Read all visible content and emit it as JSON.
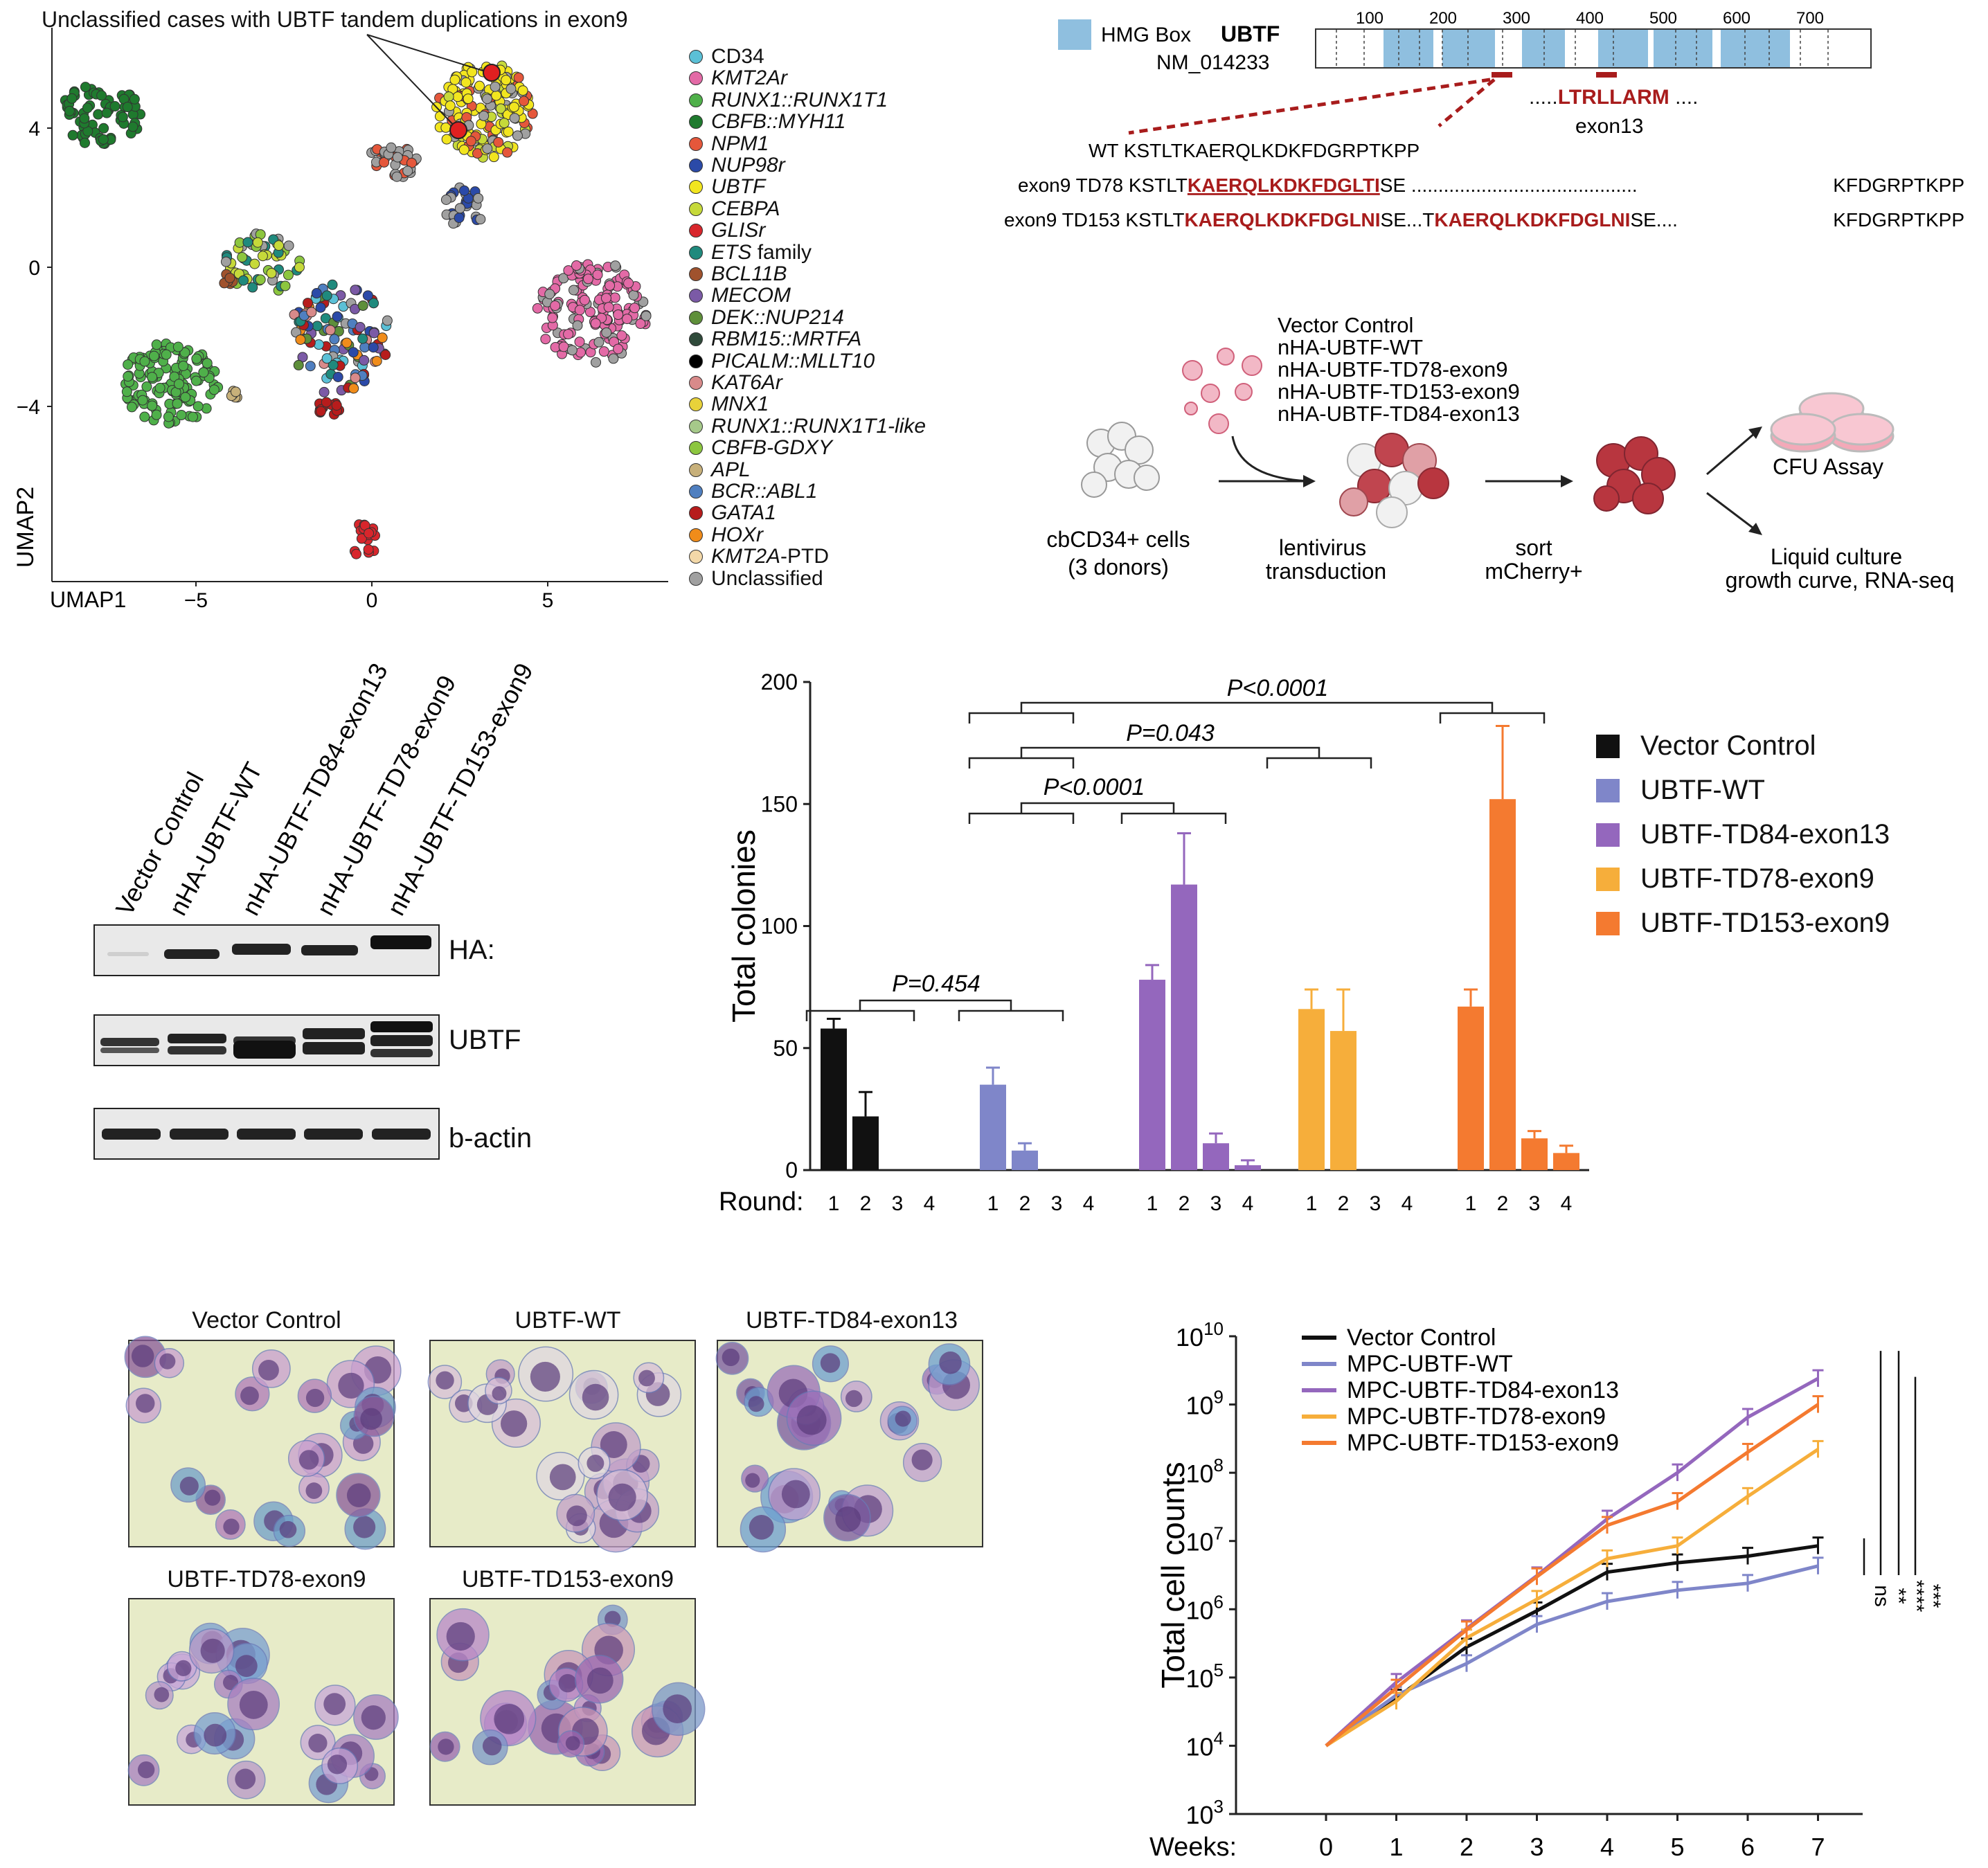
{
  "panelA": {
    "annotation": "Unclassified cases with UBTF tandem duplications in exon9",
    "xlabel": "UMAP1",
    "ylabel": "UMAP2",
    "xticks": [
      "−5",
      "0",
      "5"
    ],
    "yticks": [
      "4",
      "0",
      "−4"
    ],
    "legend": [
      {
        "label": "CD34",
        "color": "#5bc0d6",
        "italic": false
      },
      {
        "label": "KMT2Ar",
        "color": "#e36aa6",
        "italic": true
      },
      {
        "label": "RUNX1::RUNX1T1",
        "color": "#4fb04a",
        "italic": true
      },
      {
        "label": "CBFB::MYH11",
        "color": "#1f7a2e",
        "italic": true
      },
      {
        "label": "NPM1",
        "color": "#e5573b",
        "italic": true
      },
      {
        "label": "NUP98r",
        "color": "#2b4aa8",
        "italic": true
      },
      {
        "label": "UBTF",
        "color": "#f2e51f",
        "italic": true
      },
      {
        "label": "CEBPA",
        "color": "#c6d93a",
        "italic": true
      },
      {
        "label": "GLISr",
        "color": "#d8262c",
        "italic": true
      },
      {
        "label": "ETS family",
        "color": "#1f8a7d",
        "italic": true,
        "plain_suffix": " family",
        "italic_part": "ETS"
      },
      {
        "label": "BCL11B",
        "color": "#a0522d",
        "italic": true
      },
      {
        "label": "MECOM",
        "color": "#7b5aa6",
        "italic": true
      },
      {
        "label": "DEK::NUP214",
        "color": "#5e8f3a",
        "italic": true
      },
      {
        "label": "RBM15::MRTFA",
        "color": "#2f4a3a",
        "italic": true
      },
      {
        "label": "PICALM::MLLT10",
        "color": "#000000",
        "italic": true
      },
      {
        "label": "KAT6Ar",
        "color": "#d88a8a",
        "italic": true
      },
      {
        "label": "MNX1",
        "color": "#e8d23a",
        "italic": true
      },
      {
        "label": "RUNX1::RUNX1T1-like",
        "color": "#a6c98a",
        "italic": true
      },
      {
        "label": "CBFB-GDXY",
        "color": "#8cc63f",
        "italic": true
      },
      {
        "label": "APL",
        "color": "#c7b07a",
        "italic": true
      },
      {
        "label": "BCR::ABL1",
        "color": "#4f7fc0",
        "italic": true
      },
      {
        "label": "GATA1",
        "color": "#b71c1c",
        "italic": true
      },
      {
        "label": "HOXr",
        "color": "#f08c1a",
        "italic": true
      },
      {
        "label": "KMT2A-PTD",
        "color": "#f3d8a8",
        "italic": true,
        "italic_part": "KMT2A",
        "plain_suffix": "-PTD"
      },
      {
        "label": "Unclassified",
        "color": "#a0a0a0",
        "italic": false
      }
    ]
  },
  "panelB": {
    "hmg_legend": "HMG Box",
    "gene": "UBTF",
    "transcript": "NM_014233",
    "ruler": [
      "100",
      "200",
      "300",
      "400",
      "500",
      "600",
      "700"
    ],
    "exon13_seq_prefix": ".....",
    "exon13_seq": "LTRLLARM",
    "exon13_seq_suffix": " ....",
    "exon13_label": "exon13",
    "wt_label": "WT",
    "wt_seq": "KSTLTKAERQLKDKFDGRPTKPP",
    "td78_label": "exon9 TD78",
    "td78_pre": "KSTLT",
    "td78_red": "KAERQLKDKFDGLTI",
    "td78_post": "SE ..........................................",
    "td78_end": "KFDGRPTKPP",
    "td153_label": "exon9 TD153",
    "td153_pre": "KSTLT",
    "td153_red1": "KAERQLKDKFDGLNI",
    "td153_mid": "SE...T",
    "td153_red2": "KAERQLKDKFDGLNI",
    "td153_post": "SE....",
    "td153_end": "KFDGRPTKPP"
  },
  "panelC": {
    "constructs": [
      "Vector Control",
      "nHA-UBTF-WT",
      "nHA-UBTF-TD78-exon9",
      "nHA-UBTF-TD153-exon9",
      "nHA-UBTF-TD84-exon13"
    ],
    "cells_label_1": "cbCD34+ cells",
    "cells_label_2": "(3 donors)",
    "transduction_1": "lentivirus",
    "transduction_2": "transduction",
    "sort_1": "sort",
    "sort_2": "mCherry+",
    "cfu": "CFU  Assay",
    "liquid_1": "Liquid  culture",
    "liquid_2": "growth  curve, RNA-seq"
  },
  "panelD": {
    "lanes": [
      "Vector Control",
      "nHA-UBTF-WT",
      "nHA-UBTF-TD84-exon13",
      "nHA-UBTF-TD78-exon9",
      "nHA-UBTF-TD153-exon9"
    ],
    "blots": [
      "HA:",
      "UBTF",
      "b-actin"
    ]
  },
  "chart_data": [
    {
      "type": "bar",
      "ylabel": "Total  colonies",
      "ylim": [
        0,
        200
      ],
      "yticks": [
        0,
        50,
        100,
        150,
        200
      ],
      "round_label": "Round:",
      "rounds": [
        "1",
        "2",
        "3",
        "4"
      ],
      "series": [
        {
          "name": "Vector Control",
          "color": "#111111",
          "values": [
            58,
            22,
            0,
            0
          ],
          "errors": [
            4,
            10,
            0,
            0
          ]
        },
        {
          "name": "UBTF-WT",
          "color": "#7f86c9",
          "values": [
            35,
            8,
            0,
            0
          ],
          "errors": [
            7,
            3,
            0,
            0
          ]
        },
        {
          "name": "UBTF-TD84-exon13",
          "color": "#9467bd",
          "values": [
            78,
            117,
            11,
            2
          ],
          "errors": [
            6,
            21,
            4,
            2
          ]
        },
        {
          "name": "UBTF-TD78-exon9",
          "color": "#f6ae3b",
          "values": [
            66,
            57,
            0,
            0
          ],
          "errors": [
            8,
            17,
            0,
            0
          ]
        },
        {
          "name": "UBTF-TD153-exon9",
          "color": "#f47a30",
          "values": [
            67,
            152,
            13,
            7
          ],
          "errors": [
            7,
            30,
            3,
            3
          ]
        }
      ],
      "pvalues": [
        "P<0.0001",
        "P=0.043",
        "P<0.0001",
        "P=0.454"
      ]
    },
    {
      "type": "line",
      "ylabel": "Total  cell counts",
      "xlabel": "Weeks:",
      "x": [
        0,
        1,
        2,
        3,
        4,
        5,
        6,
        7
      ],
      "yscale": "log",
      "ylim": [
        1000,
        10000000000
      ],
      "ytick_exponents": [
        "3",
        "4",
        "5",
        "6",
        "7",
        "8",
        "9",
        "10"
      ],
      "series": [
        {
          "name": "Vector Control",
          "color": "#111111",
          "values": [
            10000,
            50000,
            280000,
            950000,
            3500000,
            4800000,
            6000000,
            8500000
          ]
        },
        {
          "name": "MPC-UBTF-WT",
          "color": "#7f86c9",
          "values": [
            10000,
            55000,
            160000,
            600000,
            1300000,
            1900000,
            2400000,
            4300000
          ]
        },
        {
          "name": "MPC-UBTF-TD84-exon13",
          "color": "#9467bd",
          "values": [
            10000,
            85000,
            520000,
            3100000,
            21000000,
            100000000,
            650000000,
            2400000000
          ]
        },
        {
          "name": "MPC-UBTF-TD78-exon9",
          "color": "#f6ae3b",
          "values": [
            10000,
            45000,
            380000,
            1400000,
            5500000,
            8500000,
            45000000,
            220000000
          ]
        },
        {
          "name": "MPC-UBTF-TD153-exon9",
          "color": "#f47a30",
          "values": [
            10000,
            70000,
            500000,
            3000000,
            17000000,
            38000000,
            200000000,
            1000000000
          ]
        }
      ],
      "significance": [
        "ns",
        "**",
        "****",
        "***"
      ]
    }
  ],
  "panelF": {
    "titles": [
      "Vector Control",
      "UBTF-WT",
      "UBTF-TD84-exon13",
      "UBTF-TD78-exon9",
      "UBTF-TD153-exon9"
    ]
  }
}
